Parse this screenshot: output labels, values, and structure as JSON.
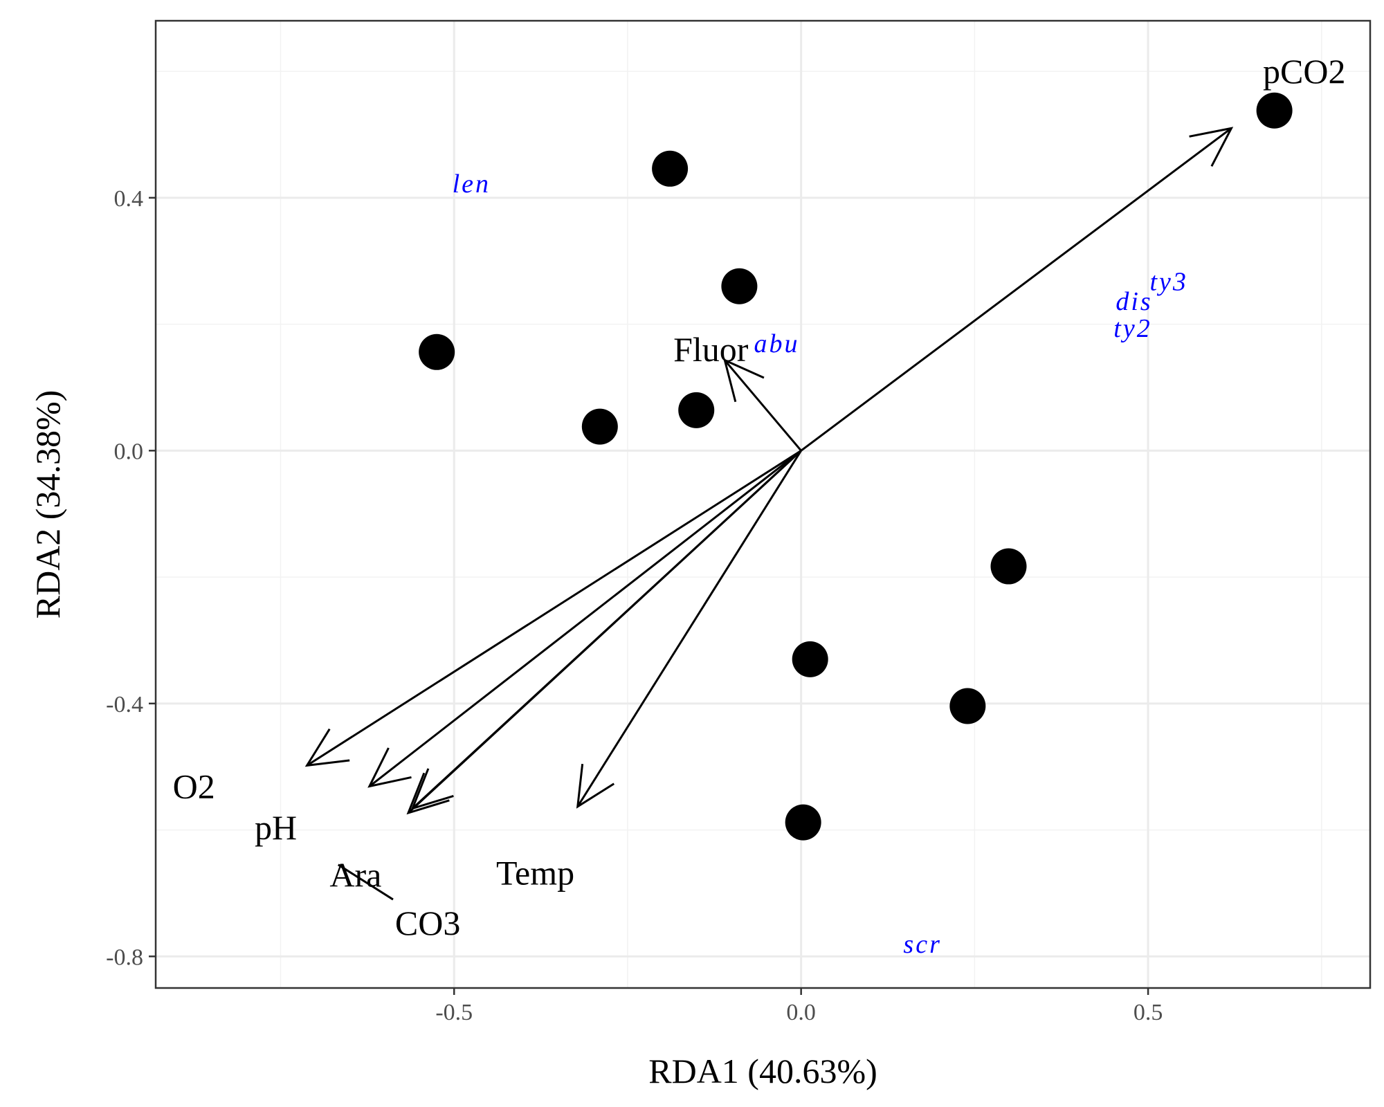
{
  "chart_data": {
    "type": "scatter",
    "xlabel": "RDA1 (40.63%)",
    "ylabel": "RDA2 (34.38%)",
    "xlim": [
      -0.93,
      0.82
    ],
    "ylim": [
      -0.85,
      0.68
    ],
    "x_ticks": [
      -0.5,
      0.0,
      0.5
    ],
    "y_ticks": [
      0.4,
      0.0,
      -0.4,
      -0.8
    ],
    "x_tick_labels": [
      "-0.5",
      "0.0",
      "0.5"
    ],
    "y_tick_labels": [
      "0.4",
      "0.0",
      "-0.4",
      "-0.8"
    ],
    "grid": true,
    "sites": [
      {
        "x": 0.682,
        "y": 0.538
      },
      {
        "x": -0.189,
        "y": 0.446
      },
      {
        "x": -0.089,
        "y": 0.26
      },
      {
        "x": -0.525,
        "y": 0.156
      },
      {
        "x": -0.151,
        "y": 0.064
      },
      {
        "x": -0.29,
        "y": 0.038
      },
      {
        "x": 0.299,
        "y": -0.183
      },
      {
        "x": 0.013,
        "y": -0.33
      },
      {
        "x": 0.24,
        "y": -0.404
      },
      {
        "x": 0.003,
        "y": -0.588
      }
    ],
    "vectors": [
      {
        "label": "pCO2",
        "x": 0.62,
        "y": 0.51,
        "label_x": 0.725,
        "label_y": 0.6
      },
      {
        "label": "Fluor",
        "x": -0.11,
        "y": 0.143,
        "label_x": -0.13,
        "label_y": 0.16
      },
      {
        "label": "O2",
        "x": -0.712,
        "y": -0.498,
        "label_x": -0.875,
        "label_y": -0.531
      },
      {
        "label": "pH",
        "x": -0.622,
        "y": -0.531,
        "label_x": -0.757,
        "label_y": -0.596
      },
      {
        "label": "Ara",
        "x": -0.56,
        "y": -0.566,
        "label_x": -0.642,
        "label_y": -0.671
      },
      {
        "label": "CO3",
        "x": -0.566,
        "y": -0.573,
        "label_x": -0.538,
        "label_y": -0.747
      },
      {
        "label": "Temp",
        "x": -0.322,
        "y": -0.563,
        "label_x": -0.383,
        "label_y": -0.668
      }
    ],
    "species": [
      {
        "label": "len",
        "x": -0.475,
        "y": 0.423
      },
      {
        "label": "ty3",
        "x": 0.53,
        "y": 0.268
      },
      {
        "label": "dis",
        "x": 0.48,
        "y": 0.237
      },
      {
        "label": "ty2",
        "x": 0.478,
        "y": 0.194
      },
      {
        "label": "abu",
        "x": -0.035,
        "y": 0.17
      },
      {
        "label": "scr",
        "x": 0.175,
        "y": -0.78
      }
    ]
  },
  "colors": {
    "background": "#ffffff",
    "panel_border": "#333333",
    "grid_major": "#ebebeb",
    "grid_minor": "#f2f2f2",
    "points": "#000000",
    "vectors": "#000000",
    "species_text": "#0000ff"
  }
}
